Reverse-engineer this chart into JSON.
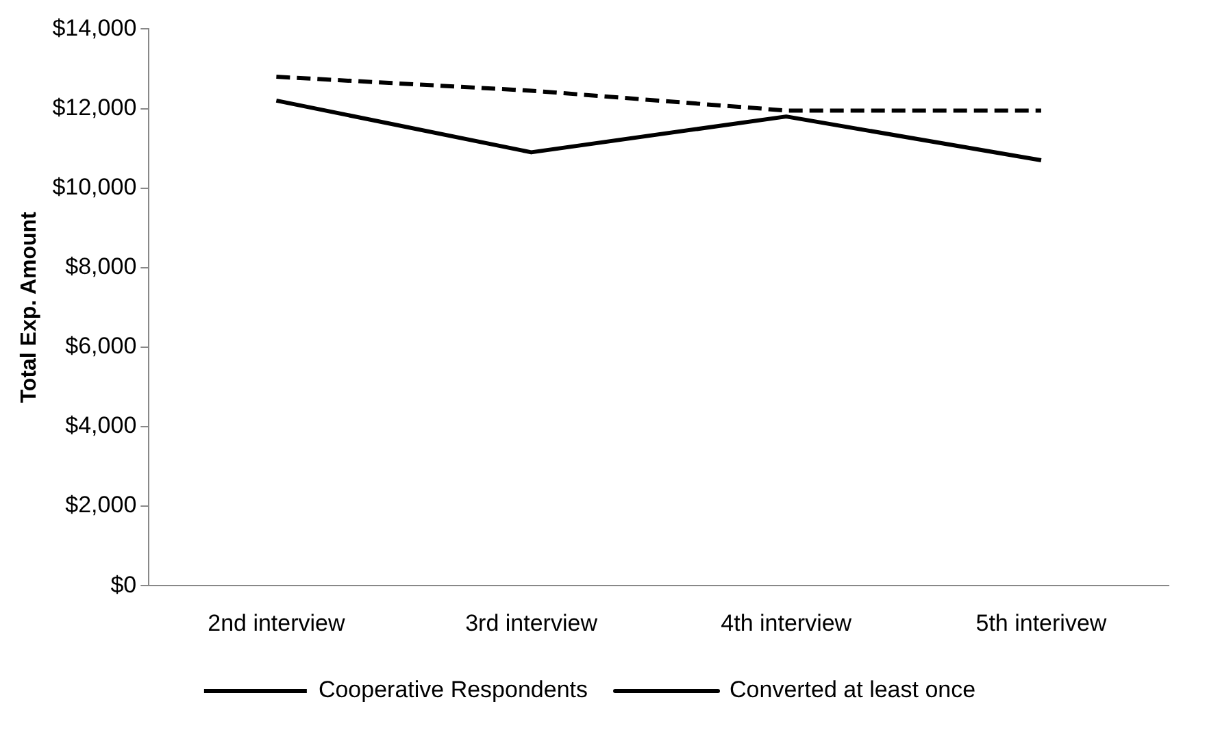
{
  "chart_data": {
    "type": "line",
    "ylabel": "Total Exp. Amount",
    "categories": [
      "2nd interview",
      "3rd interview",
      "4th interview",
      "5th interivew"
    ],
    "series": [
      {
        "name": "Cooperative Respondents",
        "color": "#000000",
        "line_style": "dashed",
        "values": [
          12800,
          12450,
          11950,
          11950
        ]
      },
      {
        "name": "Converted at least once",
        "color": "#000000",
        "line_style": "solid",
        "values": [
          12200,
          10900,
          11800,
          10700
        ]
      }
    ],
    "ylim": [
      0,
      14000
    ],
    "yticks": [
      {
        "value": 0,
        "label": "$0"
      },
      {
        "value": 2000,
        "label": "$2,000"
      },
      {
        "value": 4000,
        "label": "$4,000"
      },
      {
        "value": 6000,
        "label": "$6,000"
      },
      {
        "value": 8000,
        "label": "$8,000"
      },
      {
        "value": 10000,
        "label": "$10,000"
      },
      {
        "value": 12000,
        "label": "$12,000"
      },
      {
        "value": 14000,
        "label": "$14,000"
      }
    ],
    "legend": "bottom",
    "marker": "none",
    "grid": false
  }
}
